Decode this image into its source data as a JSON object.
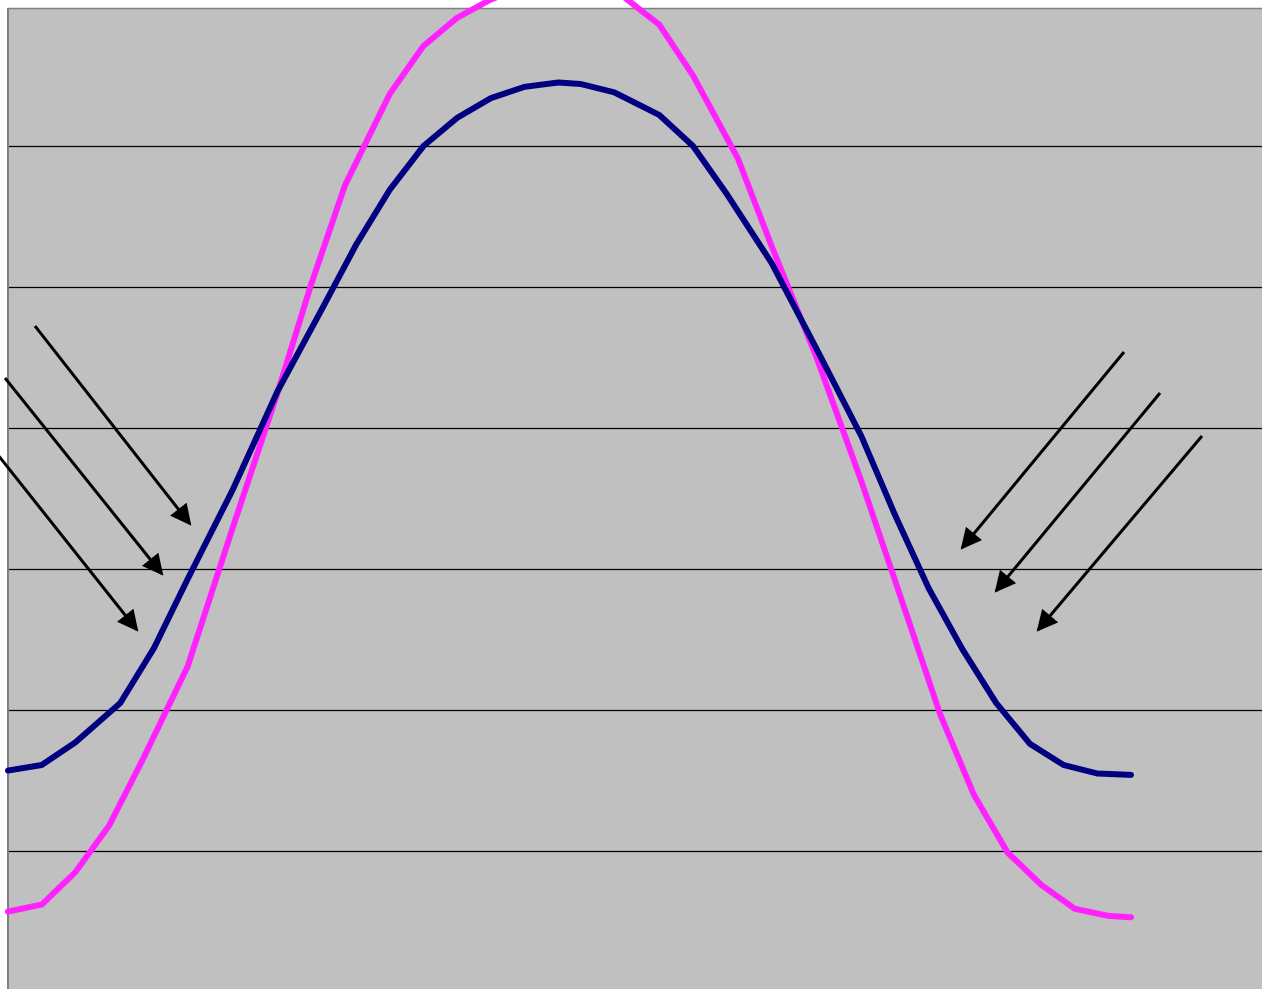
{
  "chart_data": {
    "type": "line",
    "title": "",
    "xlabel": "",
    "ylabel": "",
    "x_range": [
      0,
      1
    ],
    "ylim": [
      0,
      7
    ],
    "grid": true,
    "legend": "none",
    "colors": {
      "plot_background": "#c0c0c0",
      "gridline": "#000000",
      "axis": "#808080",
      "annotation_arrows": "#000000"
    },
    "series": [
      {
        "color": "#ff22ff",
        "x": [
          0,
          0.03,
          0.06,
          0.09,
          0.12,
          0.16,
          0.2,
          0.24,
          0.27,
          0.3,
          0.34,
          0.37,
          0.4,
          0.43,
          0.46,
          0.49,
          0.51,
          0.54,
          0.58,
          0.61,
          0.65,
          0.68,
          0.72,
          0.76,
          0.8,
          0.83,
          0.86,
          0.89,
          0.92,
          0.95,
          0.98,
          1.0
        ],
        "y": [
          0.57,
          0.62,
          0.85,
          1.18,
          1.65,
          2.31,
          3.29,
          4.25,
          5.02,
          5.72,
          6.37,
          6.71,
          6.91,
          7.04,
          7.13,
          7.19,
          7.19,
          7.11,
          6.86,
          6.5,
          5.91,
          5.29,
          4.5,
          3.62,
          2.68,
          1.97,
          1.4,
          0.99,
          0.76,
          0.59,
          0.54,
          0.53
        ]
      },
      {
        "color": "#000080",
        "x": [
          0,
          0.03,
          0.06,
          0.1,
          0.13,
          0.16,
          0.2,
          0.24,
          0.28,
          0.31,
          0.34,
          0.37,
          0.4,
          0.43,
          0.46,
          0.49,
          0.51,
          0.54,
          0.58,
          0.61,
          0.64,
          0.68,
          0.72,
          0.76,
          0.79,
          0.82,
          0.85,
          0.88,
          0.91,
          0.94,
          0.97,
          1.0
        ],
        "y": [
          1.57,
          1.61,
          1.77,
          2.05,
          2.44,
          2.93,
          3.56,
          4.26,
          4.85,
          5.3,
          5.69,
          6.0,
          6.2,
          6.34,
          6.42,
          6.45,
          6.44,
          6.38,
          6.22,
          6.0,
          5.66,
          5.17,
          4.56,
          3.94,
          3.38,
          2.86,
          2.43,
          2.05,
          1.76,
          1.61,
          1.55,
          1.54
        ]
      }
    ]
  }
}
